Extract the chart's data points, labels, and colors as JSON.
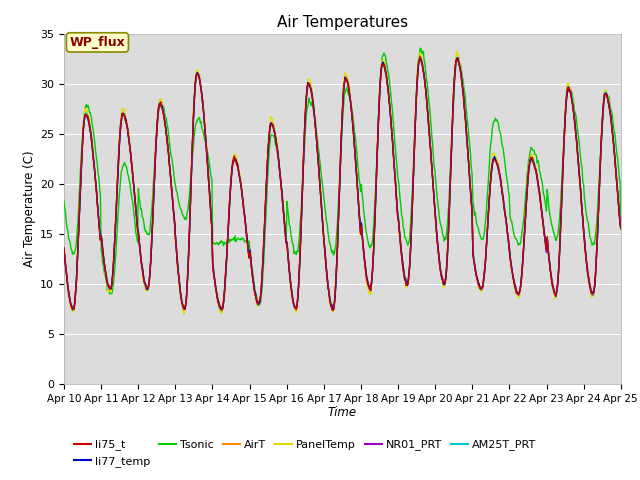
{
  "title": "Air Temperatures",
  "xlabel": "Time",
  "ylabel": "Air Temperature (C)",
  "ylim": [
    0,
    35
  ],
  "xlim": [
    0,
    15
  ],
  "x_tick_labels": [
    "Apr 10",
    "Apr 11",
    "Apr 12",
    "Apr 13",
    "Apr 14",
    "Apr 15",
    "Apr 16",
    "Apr 17",
    "Apr 18",
    "Apr 19",
    "Apr 20",
    "Apr 21",
    "Apr 22",
    "Apr 23",
    "Apr 24",
    "Apr 25"
  ],
  "yticks": [
    0,
    5,
    10,
    15,
    20,
    25,
    30,
    35
  ],
  "wp_flux_label": "WP_flux",
  "legend": [
    {
      "label": "li75_t",
      "color": "#cc0000"
    },
    {
      "label": "li77_temp",
      "color": "#0000cc"
    },
    {
      "label": "Tsonic",
      "color": "#00cc00"
    },
    {
      "label": "AirT",
      "color": "#ff8800"
    },
    {
      "label": "PanelTemp",
      "color": "#dddd00"
    },
    {
      "label": "NR01_PRT",
      "color": "#9900cc"
    },
    {
      "label": "AM25T_PRT",
      "color": "#00cccc"
    }
  ],
  "background_color": "#dcdcdc",
  "grid_color": "#ffffff",
  "fig_width": 6.4,
  "fig_height": 4.8,
  "dpi": 100
}
